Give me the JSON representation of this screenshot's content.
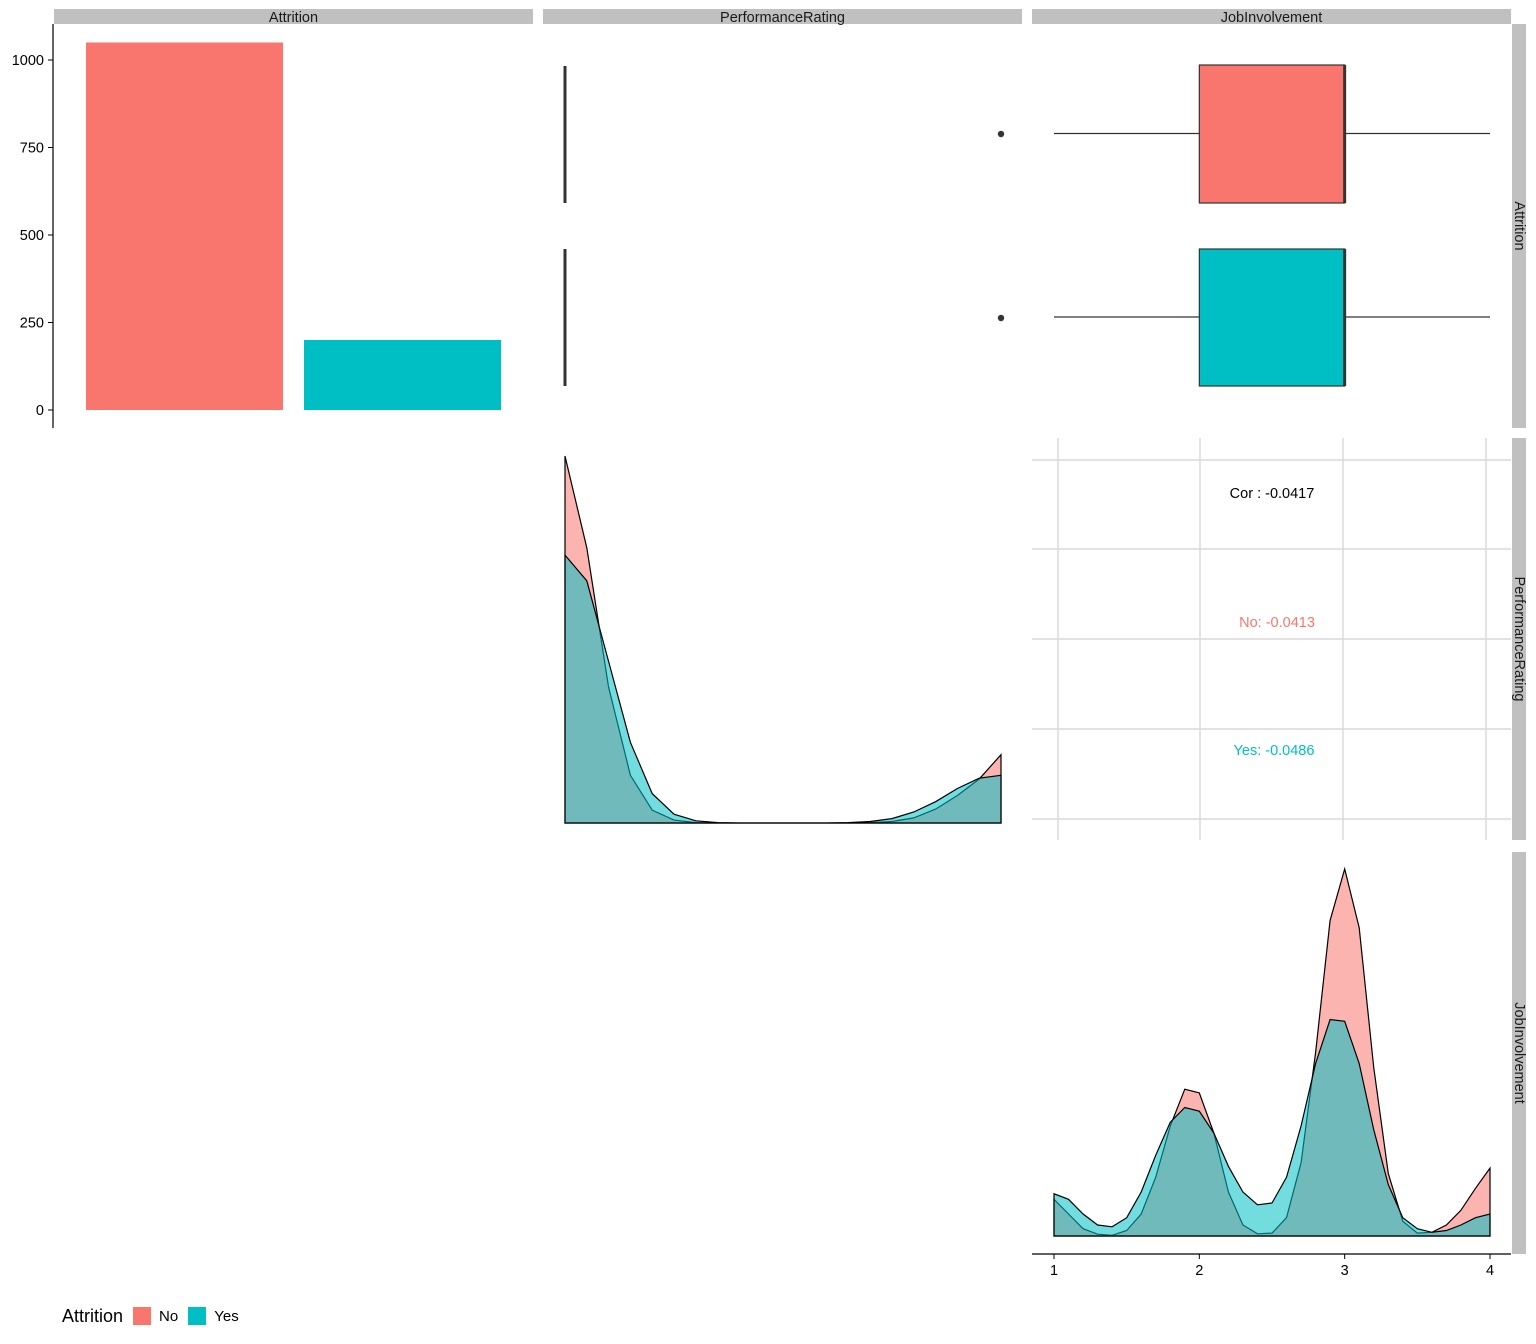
{
  "panels": {
    "columns": [
      "Attrition",
      "PerformanceRating",
      "JobInvolvement"
    ],
    "rows": [
      "Attrition",
      "PerformanceRating",
      "JobInvolvement"
    ]
  },
  "colors": {
    "No": "#F8766D",
    "Yes": "#00BFC4",
    "strip": "#c0c0c0",
    "grid": "#d9d9d9"
  },
  "legend": {
    "title": "Attrition",
    "items": [
      "No",
      "Yes"
    ]
  },
  "chart_data": [
    {
      "panel": "Attrition x Attrition",
      "type": "bar",
      "categories": [
        "No",
        "Yes"
      ],
      "values": [
        1050,
        200
      ],
      "yticks": [
        "0",
        "250",
        "500",
        "750",
        "1000"
      ],
      "ylim": [
        0,
        1100
      ]
    },
    {
      "panel": "PerformanceRating by Attrition",
      "type": "boxplot",
      "groups": [
        {
          "name": "No",
          "q1": 3,
          "median": 3,
          "q3": 3,
          "whisker_low": 3,
          "whisker_high": 3,
          "outliers": [
            4
          ]
        },
        {
          "name": "Yes",
          "q1": 3,
          "median": 3,
          "q3": 3,
          "whisker_low": 3,
          "whisker_high": 3,
          "outliers": [
            4
          ]
        }
      ],
      "xlim": [
        3,
        4
      ]
    },
    {
      "panel": "JobInvolvement by Attrition",
      "type": "boxplot",
      "groups": [
        {
          "name": "No",
          "q1": 2,
          "median": 3,
          "q3": 3,
          "whisker_low": 1,
          "whisker_high": 4
        },
        {
          "name": "Yes",
          "q1": 2,
          "median": 3,
          "q3": 3,
          "whisker_low": 1,
          "whisker_high": 4
        }
      ],
      "xlim": [
        1,
        4
      ]
    },
    {
      "panel": "PerformanceRating density",
      "type": "area",
      "x": [
        3.0,
        3.05,
        3.1,
        3.15,
        3.2,
        3.25,
        3.3,
        3.35,
        3.4,
        3.45,
        3.5,
        3.55,
        3.6,
        3.65,
        3.7,
        3.75,
        3.8,
        3.85,
        3.9,
        3.95,
        4.0
      ],
      "series": [
        {
          "name": "No",
          "values": [
            1.0,
            0.75,
            0.37,
            0.13,
            0.035,
            0.008,
            0.001,
            0,
            0,
            0,
            0,
            0,
            0,
            0,
            0.001,
            0.004,
            0.014,
            0.038,
            0.075,
            0.12,
            0.186
          ]
        },
        {
          "name": "Yes",
          "values": [
            0.73,
            0.66,
            0.44,
            0.22,
            0.08,
            0.024,
            0.006,
            0.001,
            0,
            0,
            0,
            0,
            0,
            0.001,
            0.004,
            0.012,
            0.03,
            0.058,
            0.094,
            0.122,
            0.13
          ]
        }
      ],
      "ylim": [
        0,
        1.0
      ]
    },
    {
      "panel": "Correlation PerformanceRating vs JobInvolvement",
      "type": "table",
      "overall": "Cor : -0.0417",
      "groups": [
        {
          "name": "No",
          "text": "No: -0.0413"
        },
        {
          "name": "Yes",
          "text": "Yes: -0.0486"
        }
      ]
    },
    {
      "panel": "JobInvolvement density",
      "type": "area",
      "x": [
        1.0,
        1.1,
        1.2,
        1.3,
        1.4,
        1.5,
        1.6,
        1.7,
        1.8,
        1.9,
        2.0,
        2.1,
        2.2,
        2.3,
        2.4,
        2.5,
        2.6,
        2.7,
        2.8,
        2.9,
        3.0,
        3.1,
        3.2,
        3.3,
        3.4,
        3.5,
        3.6,
        3.7,
        3.8,
        3.9,
        4.0
      ],
      "series": [
        {
          "name": "No",
          "values": [
            0.1,
            0.06,
            0.02,
            0.005,
            0.002,
            0.015,
            0.06,
            0.16,
            0.3,
            0.4,
            0.39,
            0.28,
            0.12,
            0.03,
            0.006,
            0.008,
            0.05,
            0.2,
            0.5,
            0.86,
            1.0,
            0.84,
            0.46,
            0.17,
            0.04,
            0.008,
            0.01,
            0.03,
            0.07,
            0.13,
            0.185
          ]
        },
        {
          "name": "Yes",
          "values": [
            0.115,
            0.1,
            0.06,
            0.03,
            0.025,
            0.05,
            0.12,
            0.22,
            0.31,
            0.35,
            0.34,
            0.28,
            0.19,
            0.12,
            0.085,
            0.09,
            0.16,
            0.3,
            0.47,
            0.59,
            0.585,
            0.47,
            0.29,
            0.14,
            0.05,
            0.02,
            0.01,
            0.015,
            0.03,
            0.05,
            0.06
          ]
        }
      ],
      "xticks": [
        "1",
        "2",
        "3",
        "4"
      ],
      "xlim": [
        1,
        4
      ],
      "ylim": [
        0,
        1.0
      ]
    }
  ]
}
